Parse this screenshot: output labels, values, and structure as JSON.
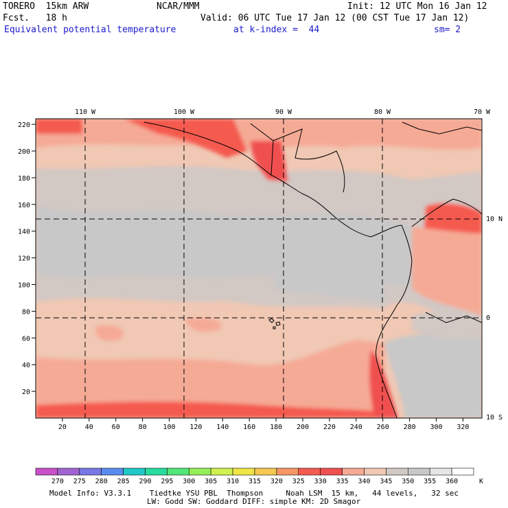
{
  "header": {
    "model": "TORERO  15km ARW",
    "center": "NCAR/MMM",
    "init": "Init: 12 UTC Mon 16 Jan 12",
    "fcst": "Fcst.   18 h",
    "valid": "Valid: 06 UTC Tue 17 Jan 12 (00 CST Tue 17 Jan 12)",
    "field": "Equivalent potential temperature",
    "level": "at k-index =  44",
    "smooth": "sm= 2"
  },
  "axes": {
    "top_lon_labels": [
      "110 W",
      "100 W",
      "90 W",
      "80 W",
      "70 W"
    ],
    "right_lat_labels": [
      "10 N",
      "0",
      "10 S"
    ],
    "left_y_ticks": [
      "20",
      "40",
      "60",
      "80",
      "100",
      "120",
      "140",
      "160",
      "180",
      "200",
      "220"
    ],
    "bottom_x_ticks": [
      "20",
      "40",
      "60",
      "80",
      "100",
      "120",
      "140",
      "160",
      "180",
      "200",
      "220",
      "240",
      "260",
      "280",
      "300",
      "320"
    ]
  },
  "colorbar": {
    "unit": "K",
    "labels": [
      "270",
      "275",
      "280",
      "285",
      "290",
      "295",
      "300",
      "305",
      "310",
      "315",
      "320",
      "325",
      "330",
      "335",
      "340",
      "345",
      "350",
      "355",
      "360"
    ],
    "colors": [
      "#c850c8",
      "#a064d2",
      "#7878e6",
      "#5a8cf0",
      "#20c8c8",
      "#28dca0",
      "#50e678",
      "#96ee5a",
      "#d2f050",
      "#f0e646",
      "#f5c850",
      "#f59664",
      "#f55a50",
      "#f05050",
      "#f5aa96",
      "#f0c8b4",
      "#d2c8c4",
      "#c8c8c8",
      "#e6e6e6",
      "#ffffff"
    ]
  },
  "footer": {
    "line1": "Model Info: V3.3.1    Tiedtke YSU PBL  Thompson     Noah LSM  15 km,   44 levels,   32 sec",
    "line2": "LW: Godd SW: Goddard DIFF: simple KM: 2D Smagor"
  }
}
